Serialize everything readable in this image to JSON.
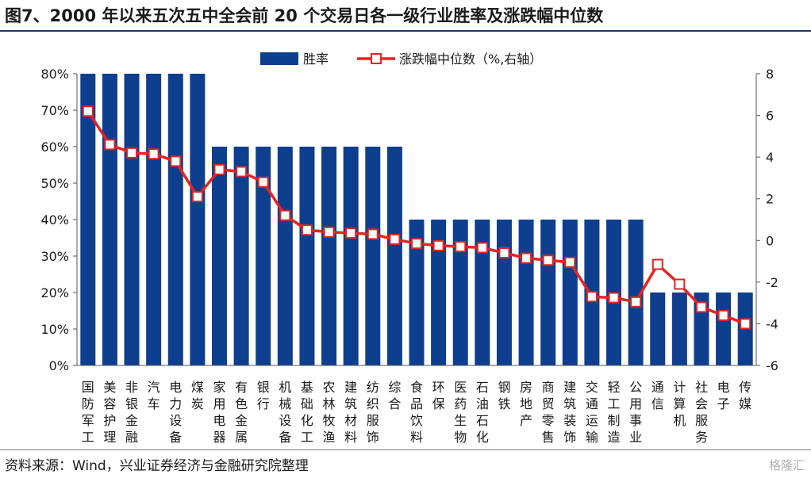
{
  "title": "图7、2000 年以来五次五中全会前 20 个交易日各一级行业胜率及涨跌幅中位数",
  "source": "资料来源：Wind，兴业证券经济与金融研究院整理",
  "watermark": "格隆汇",
  "colors": {
    "bar": "#0e3f8f",
    "line": "#e52421",
    "marker_fill": "#ffffff",
    "title_rule": "#1f3d7a"
  },
  "chart_data": {
    "type": "bar+line",
    "categories": [
      "国防军工",
      "美容护理",
      "非银金融",
      "汽车",
      "电力设备",
      "煤炭",
      "家用电器",
      "有色金属",
      "银行",
      "机械设备",
      "基础化工",
      "农林牧渔",
      "建筑材料",
      "纺织服饰",
      "综合",
      "食品饮料",
      "环保",
      "医药生物",
      "石油石化",
      "钢铁",
      "房地产",
      "商贸零售",
      "建筑装饰",
      "交通运输",
      "轻工制造",
      "公用事业",
      "通信",
      "计算机",
      "社会服务",
      "电子",
      "传媒"
    ],
    "series": [
      {
        "name": "胜率",
        "type": "bar",
        "axis": "left",
        "values": [
          80,
          80,
          80,
          80,
          80,
          80,
          60,
          60,
          60,
          60,
          60,
          60,
          60,
          60,
          60,
          40,
          40,
          40,
          40,
          40,
          40,
          40,
          40,
          40,
          40,
          40,
          20,
          20,
          20,
          20,
          20
        ]
      },
      {
        "name": "涨跌幅中位数（%,右轴）",
        "type": "line",
        "axis": "right",
        "values": [
          6.2,
          4.6,
          4.2,
          4.15,
          3.8,
          2.1,
          3.4,
          3.3,
          2.8,
          1.2,
          0.5,
          0.4,
          0.35,
          0.3,
          0.05,
          -0.15,
          -0.25,
          -0.3,
          -0.35,
          -0.6,
          -0.85,
          -0.95,
          -1.05,
          -2.7,
          -2.75,
          -2.95,
          -1.15,
          -2.1,
          -3.2,
          -3.6,
          -4.0
        ]
      }
    ],
    "y_left": {
      "min": 0,
      "max": 80,
      "ticks": [
        "0%",
        "10%",
        "20%",
        "30%",
        "40%",
        "50%",
        "60%",
        "70%",
        "80%"
      ]
    },
    "y_right": {
      "min": -6,
      "max": 8,
      "ticks": [
        "-6",
        "-4",
        "-2",
        "0",
        "2",
        "4",
        "6",
        "8"
      ]
    },
    "legend": {
      "placement": "top-center",
      "items": [
        "胜率",
        "涨跌幅中位数（%,右轴）"
      ]
    },
    "grid": false
  }
}
